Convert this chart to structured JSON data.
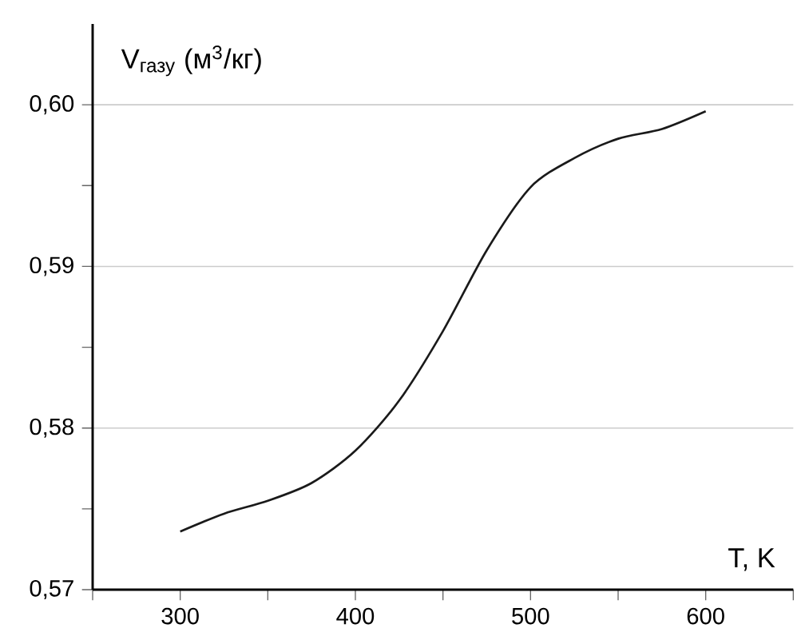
{
  "chart_data": {
    "type": "line",
    "xlabel": "T, K",
    "ylabel": "V$_{газу}$ (м$^{3}$/кг)",
    "x": [
      300,
      325,
      350,
      375,
      400,
      425,
      450,
      475,
      500,
      525,
      550,
      575,
      600
    ],
    "series": [
      {
        "color": "#1a1a1a",
        "values": [
          0.5736,
          0.5747,
          0.5755,
          0.5766,
          0.5786,
          0.5817,
          0.586,
          0.591,
          0.5949,
          0.5967,
          0.5979,
          0.5985,
          0.5996
        ]
      }
    ],
    "xlim": [
      250,
      650
    ],
    "ylim": [
      0.57,
      0.605
    ],
    "xticks": [
      {
        "value": 250,
        "label": null
      },
      300,
      {
        "value": 350,
        "label": null
      },
      400,
      {
        "value": 450,
        "label": null
      },
      500,
      {
        "value": 550,
        "label": null
      },
      600,
      {
        "value": 650,
        "label": null
      }
    ],
    "yticks": [
      {
        "value": 0.57,
        "label": "0,57"
      },
      {
        "value": 0.575,
        "label": null
      },
      {
        "value": 0.58,
        "label": "0,58"
      },
      {
        "value": 0.585,
        "label": null
      },
      {
        "value": 0.59,
        "label": "0,59"
      },
      {
        "value": 0.595,
        "label": null
      },
      {
        "value": 0.6,
        "label": "0,60"
      }
    ],
    "grid": "y",
    "line_style": "solid",
    "marker": "none"
  }
}
